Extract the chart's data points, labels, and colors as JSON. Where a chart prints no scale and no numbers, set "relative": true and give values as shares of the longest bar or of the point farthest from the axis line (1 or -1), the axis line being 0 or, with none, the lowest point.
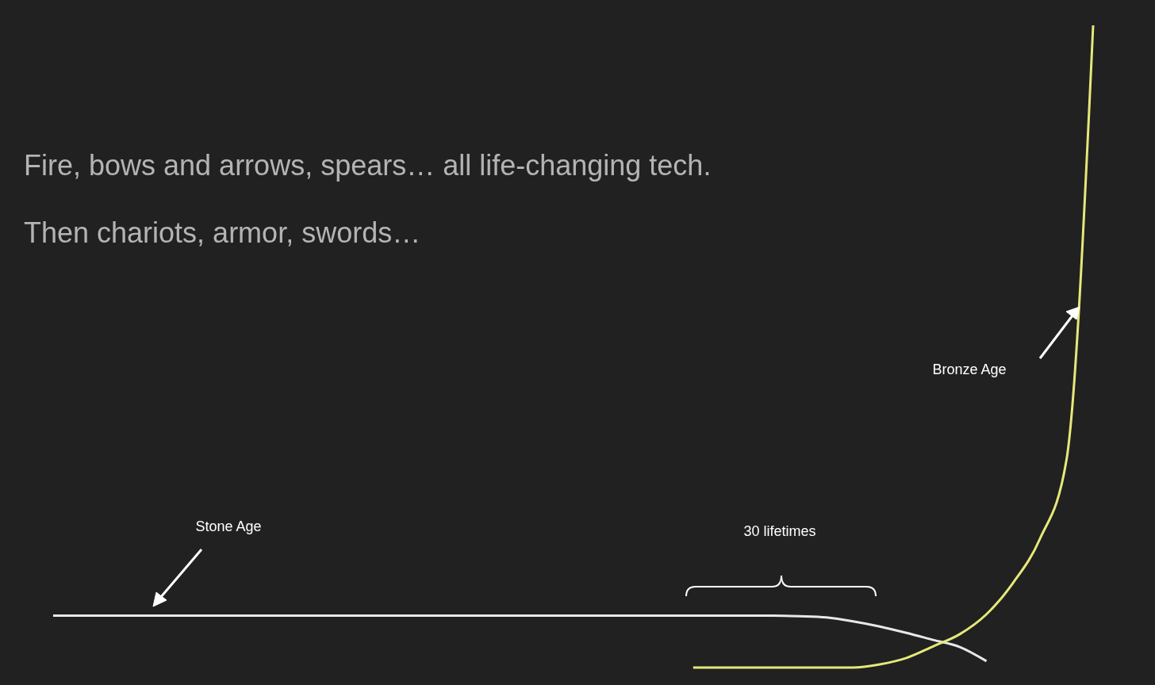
{
  "chart_data": {
    "type": "line",
    "title": "Fire, bows and arrows, spears… all life-changing tech.",
    "subtitle": "Then chariots, armor, swords…",
    "relative": true,
    "categories": [
      null,
      null,
      null,
      null,
      null,
      null,
      null,
      null,
      null,
      null,
      null,
      null,
      null,
      null,
      null,
      null,
      null,
      null,
      null,
      null,
      null,
      null,
      null,
      null,
      null,
      null,
      null,
      null,
      null,
      null,
      null,
      null,
      null,
      null,
      null,
      null,
      null,
      null,
      null,
      null
    ],
    "series": [
      {
        "color": "#e8e8e8",
        "values": [
          0.081,
          0.081,
          0.081,
          0.081,
          0.081,
          0.081,
          0.081,
          0.081,
          0.081,
          0.081,
          0.081,
          0.081,
          0.081,
          0.081,
          0.081,
          0.081,
          0.081,
          0.081,
          0.081,
          0.081,
          0.081,
          0.081,
          0.081,
          0.081,
          0.081,
          0.081,
          0.081,
          0.081,
          0.08,
          0.078,
          0.072,
          0.064,
          0.054,
          0.043,
          0.032,
          0.01,
          null,
          null,
          null,
          null
        ]
      },
      {
        "color": "#e6e87a",
        "values": [
          null,
          null,
          null,
          null,
          null,
          null,
          null,
          null,
          null,
          null,
          null,
          null,
          null,
          null,
          null,
          null,
          null,
          null,
          null,
          null,
          null,
          null,
          null,
          null,
          0,
          0,
          0,
          0,
          0,
          0,
          0,
          0.005,
          0.015,
          0.033,
          0.052,
          0.083,
          0.132,
          0.2,
          0.323,
          1
        ]
      }
    ],
    "annotations": [
      "Stone Age",
      "Bronze Age",
      "30 lifetimes"
    ]
  }
}
